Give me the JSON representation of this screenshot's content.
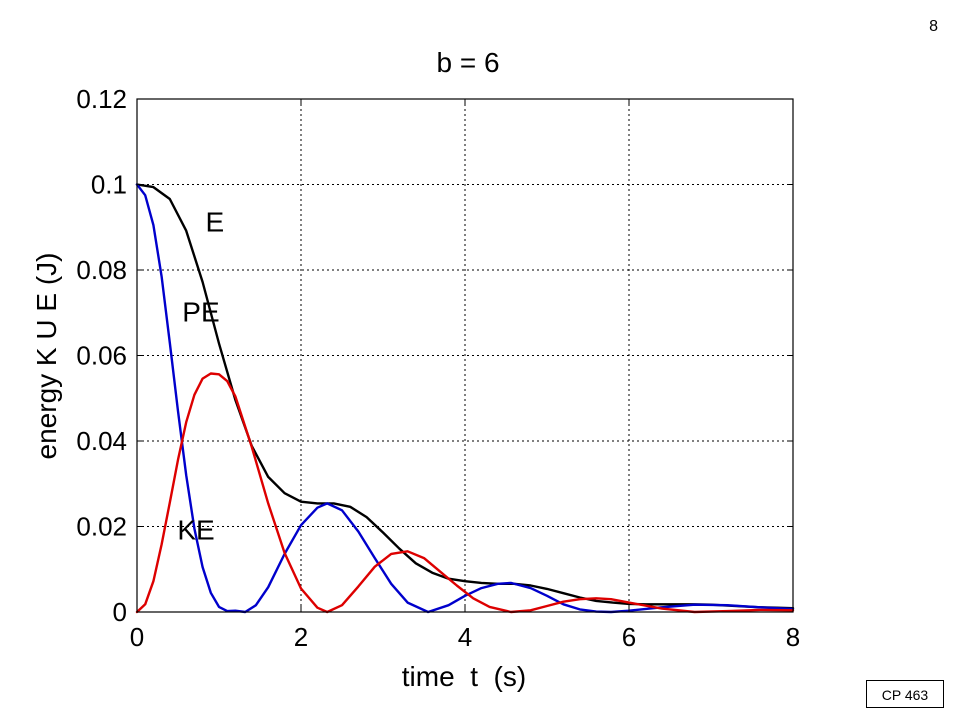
{
  "page_number": "8",
  "badge": "CP 463",
  "chart_data": {
    "type": "line",
    "title": "b = 6",
    "xlabel": "time  t  (s)",
    "ylabel": "energy K U E (J)",
    "xlim": [
      0,
      8
    ],
    "ylim": [
      0,
      0.12
    ],
    "xticks": [
      0,
      2,
      4,
      6,
      8
    ],
    "xtick_labels": [
      "0",
      "2",
      "4",
      "6",
      "8"
    ],
    "yticks": [
      0,
      0.02,
      0.04,
      0.06,
      0.08,
      0.1,
      0.12
    ],
    "ytick_labels": [
      "0",
      "0.02",
      "0.04",
      "0.06",
      "0.08",
      "0.1",
      "0.12"
    ],
    "grid": true,
    "grid_style": "dotted",
    "series": [
      {
        "name": "E",
        "color": "#000000",
        "x": [
          0,
          0.2,
          0.4,
          0.6,
          0.8,
          1.0,
          1.2,
          1.4,
          1.6,
          1.8,
          2.0,
          2.2,
          2.4,
          2.6,
          2.8,
          3.0,
          3.2,
          3.4,
          3.6,
          3.8,
          4.0,
          4.2,
          4.4,
          4.6,
          4.8,
          5.0,
          5.2,
          5.4,
          5.6,
          5.8,
          6.0,
          6.2,
          6.4,
          6.6,
          6.8,
          7.0,
          7.2,
          7.4,
          7.6,
          7.8,
          8.0
        ],
        "y": [
          0.1,
          0.0994,
          0.0966,
          0.0892,
          0.0772,
          0.0628,
          0.0496,
          0.0388,
          0.0316,
          0.0278,
          0.0258,
          0.0254,
          0.0254,
          0.0246,
          0.0222,
          0.0186,
          0.0148,
          0.0114,
          0.0092,
          0.0078,
          0.0072,
          0.0068,
          0.0066,
          0.0066,
          0.0062,
          0.0054,
          0.0044,
          0.0034,
          0.0026,
          0.0022,
          0.0019,
          0.0018,
          0.0018,
          0.0018,
          0.0018,
          0.0017,
          0.0015,
          0.0013,
          0.0011,
          0.001,
          0.0009
        ]
      },
      {
        "name": "PE",
        "color": "#0000cc",
        "x": [
          0,
          0.1,
          0.2,
          0.3,
          0.4,
          0.5,
          0.6,
          0.7,
          0.8,
          0.9,
          1.0,
          1.1,
          1.2,
          1.32,
          1.45,
          1.6,
          1.8,
          2.0,
          2.2,
          2.32,
          2.5,
          2.7,
          2.9,
          3.1,
          3.3,
          3.55,
          3.8,
          4.0,
          4.2,
          4.4,
          4.56,
          4.8,
          5.0,
          5.2,
          5.4,
          5.6,
          5.78,
          6.0,
          6.4,
          6.8,
          7.2,
          7.6,
          8.0
        ],
        "y": [
          0.1,
          0.0975,
          0.0905,
          0.0785,
          0.063,
          0.047,
          0.032,
          0.0195,
          0.0105,
          0.0045,
          0.0012,
          0.0002,
          0.0003,
          0.0,
          0.0016,
          0.0058,
          0.0136,
          0.0203,
          0.0244,
          0.0254,
          0.0238,
          0.0188,
          0.0126,
          0.0066,
          0.0022,
          0.0,
          0.0016,
          0.0038,
          0.0056,
          0.0066,
          0.0068,
          0.0056,
          0.0038,
          0.0018,
          0.0006,
          0.0001,
          0.0,
          0.0003,
          0.0011,
          0.0017,
          0.0016,
          0.0011,
          0.0007
        ]
      },
      {
        "name": "KE",
        "color": "#dd0000",
        "x": [
          0,
          0.1,
          0.2,
          0.3,
          0.4,
          0.5,
          0.6,
          0.7,
          0.8,
          0.9,
          1.0,
          1.1,
          1.2,
          1.4,
          1.6,
          1.8,
          2.0,
          2.2,
          2.32,
          2.5,
          2.7,
          2.9,
          3.1,
          3.3,
          3.5,
          3.7,
          3.9,
          4.1,
          4.3,
          4.56,
          4.8,
          5.0,
          5.2,
          5.4,
          5.6,
          5.78,
          6.0,
          6.4,
          6.8,
          7.2,
          7.6,
          8.0
        ],
        "y": [
          0.0,
          0.0018,
          0.0072,
          0.0158,
          0.0256,
          0.0356,
          0.0444,
          0.0508,
          0.0546,
          0.0558,
          0.0556,
          0.054,
          0.0504,
          0.0386,
          0.0254,
          0.0138,
          0.0055,
          0.001,
          0.0,
          0.0016,
          0.006,
          0.0106,
          0.0136,
          0.0142,
          0.0126,
          0.0094,
          0.0062,
          0.0032,
          0.0012,
          0.0,
          0.0004,
          0.0014,
          0.0024,
          0.003,
          0.0032,
          0.003,
          0.0022,
          0.0008,
          0.0,
          0.0002,
          0.0005,
          0.0004
        ]
      }
    ],
    "annotations": [
      {
        "text": "E",
        "x": 0.95,
        "y": 0.089
      },
      {
        "text": "PE",
        "x": 0.78,
        "y": 0.068
      },
      {
        "text": "KE",
        "x": 0.72,
        "y": 0.017
      }
    ]
  }
}
